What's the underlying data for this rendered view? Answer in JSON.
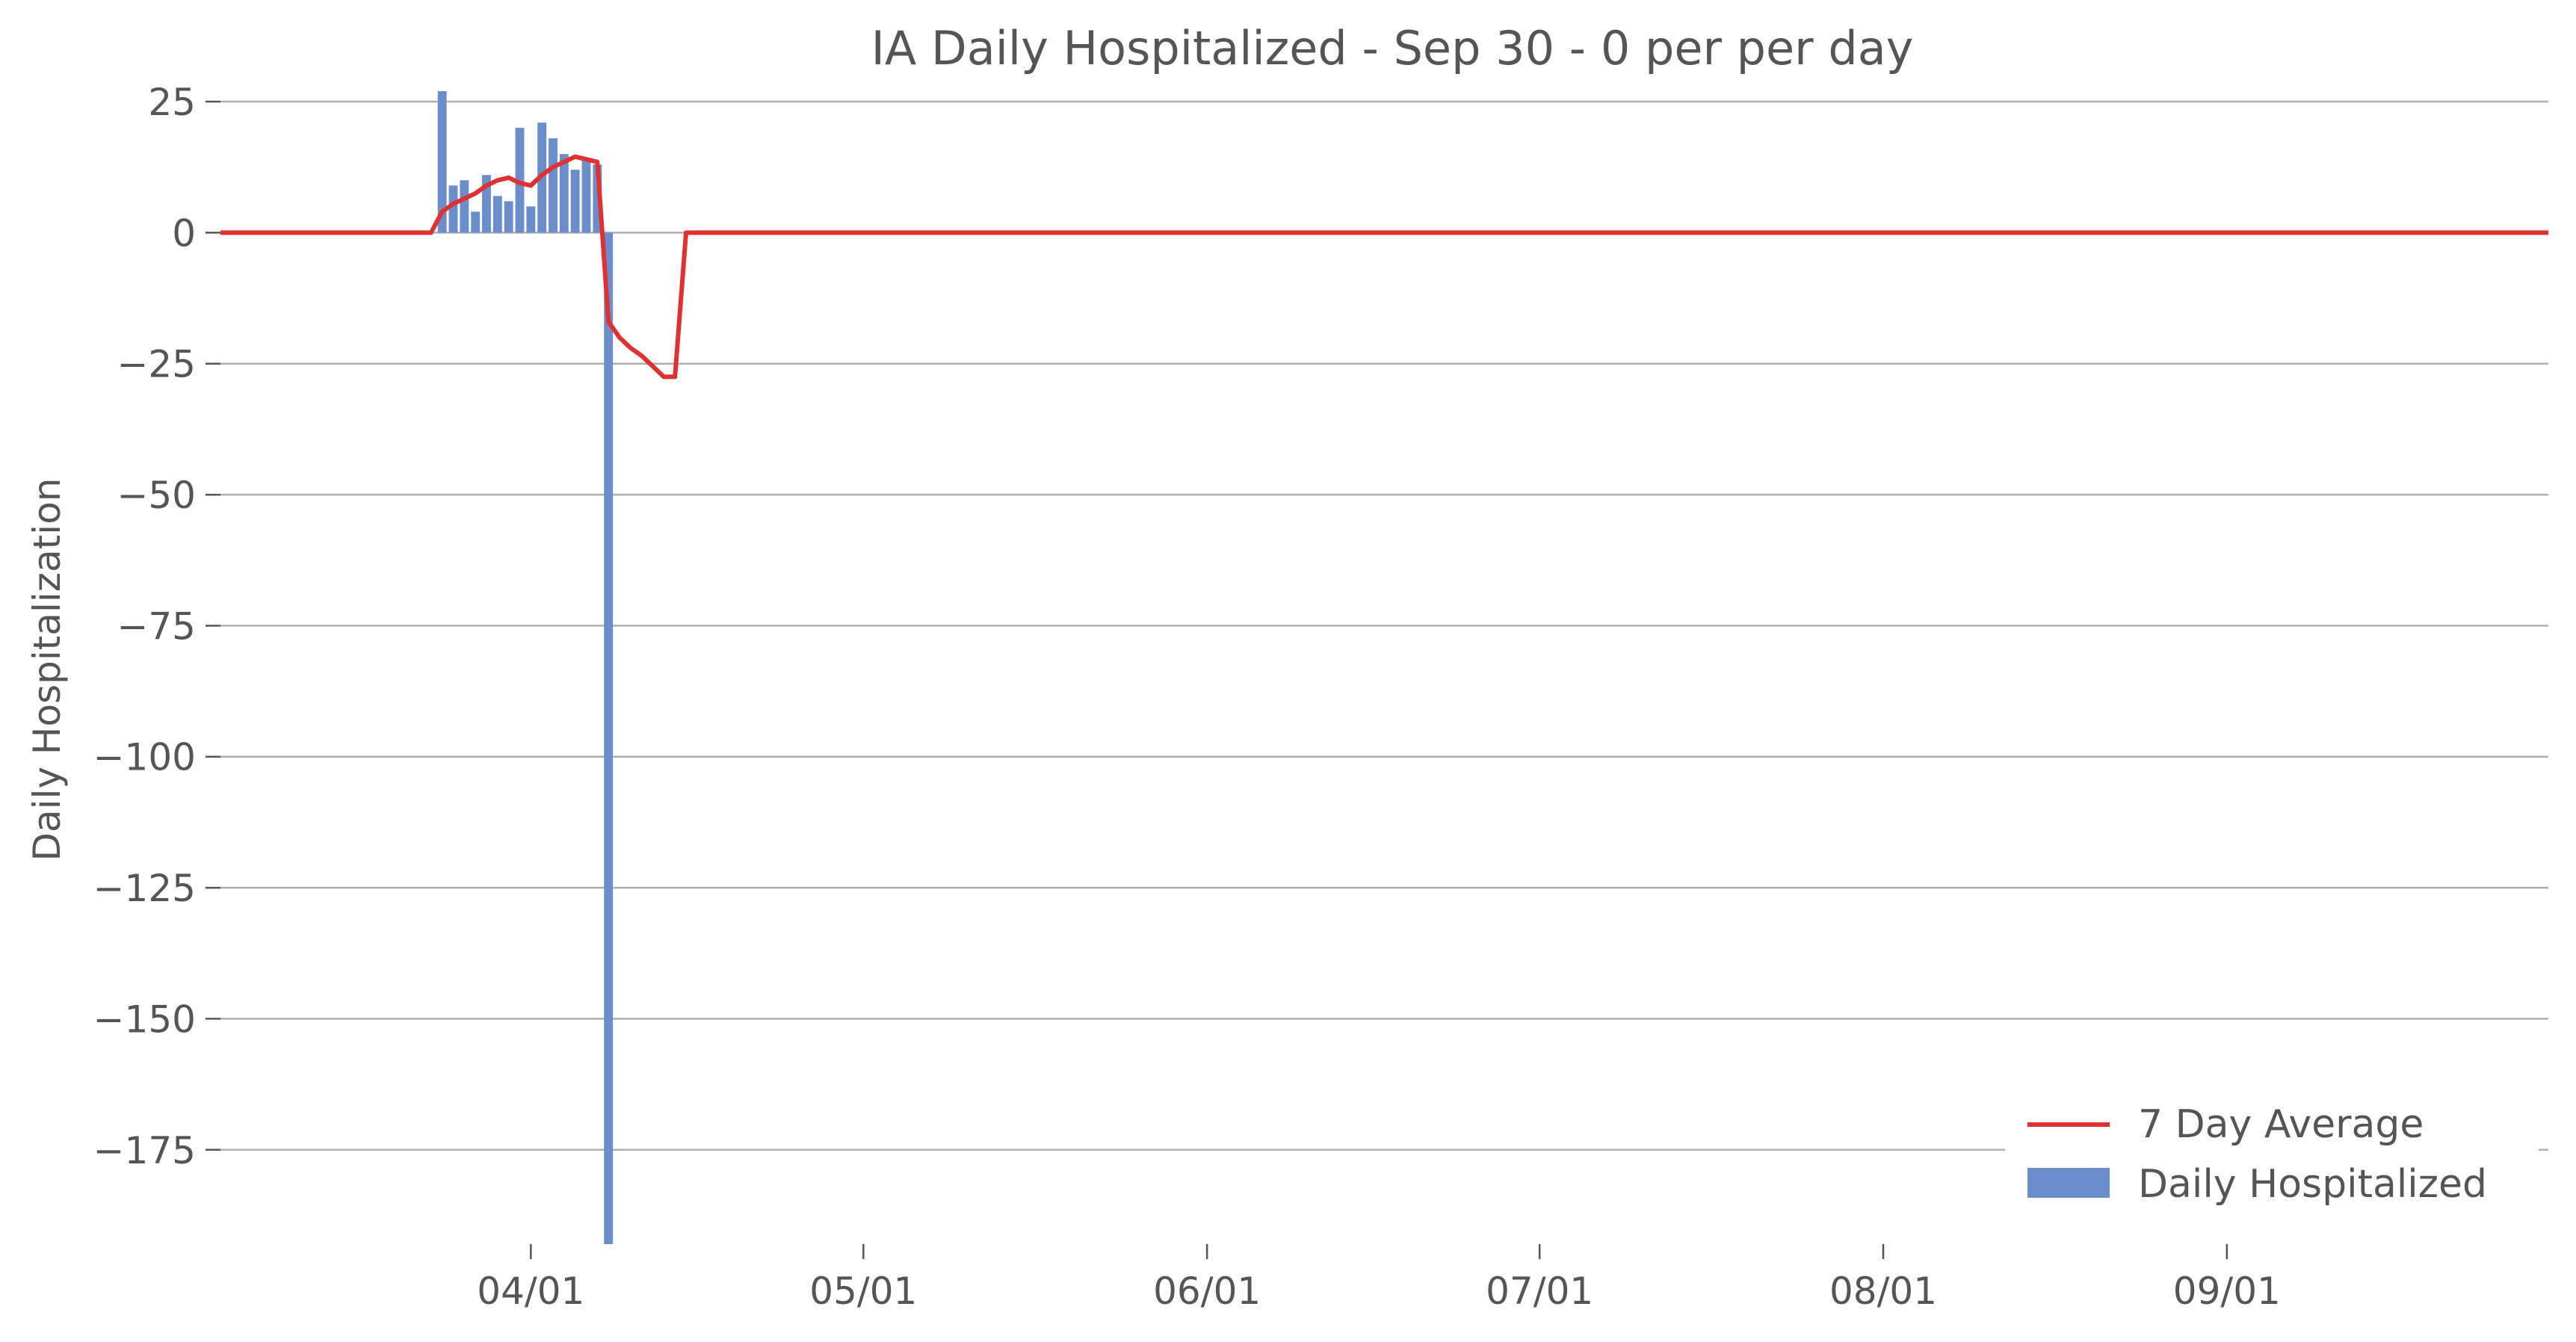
{
  "chart_data": {
    "type": "bar",
    "title": "IA Daily Hospitalized - Sep 30 - 0 per per day",
    "xlabel": "",
    "ylabel": "Daily Hospitalization",
    "ylim": [
      -193,
      29
    ],
    "yticks": [
      25,
      0,
      -25,
      -50,
      -75,
      -100,
      -125,
      -150,
      -175
    ],
    "yticklabels": [
      "25",
      "0",
      "−25",
      "−50",
      "−75",
      "−100",
      "−125",
      "−150",
      "−175"
    ],
    "xlim": [
      "2020-03-04",
      "2020-09-30"
    ],
    "xticks": [
      "2020-04-01",
      "2020-05-01",
      "2020-06-01",
      "2020-07-01",
      "2020-08-01",
      "2020-09-01"
    ],
    "xticklabels": [
      "04/01",
      "05/01",
      "06/01",
      "07/01",
      "08/01",
      "09/01"
    ],
    "grid": "horizontal",
    "legend_position": "lower-right",
    "colors": {
      "bars": "#6b8dcc",
      "average": "#e03030",
      "text": "#555555",
      "grid": "#b0b0b0"
    },
    "series": [
      {
        "name": "Daily Hospitalized",
        "type": "bar",
        "x": [
          "2020-03-24",
          "2020-03-25",
          "2020-03-26",
          "2020-03-27",
          "2020-03-28",
          "2020-03-29",
          "2020-03-30",
          "2020-03-31",
          "2020-04-01",
          "2020-04-02",
          "2020-04-03",
          "2020-04-04",
          "2020-04-05",
          "2020-04-06",
          "2020-04-07",
          "2020-04-08"
        ],
        "values": [
          27,
          9,
          10,
          4,
          11,
          7,
          6,
          20,
          5,
          21,
          18,
          15,
          12,
          14,
          13,
          -193
        ]
      },
      {
        "name": "7 Day Average",
        "type": "line",
        "x": [
          "2020-03-04",
          "2020-03-23",
          "2020-03-24",
          "2020-03-25",
          "2020-03-26",
          "2020-03-27",
          "2020-03-28",
          "2020-03-29",
          "2020-03-30",
          "2020-03-31",
          "2020-04-01",
          "2020-04-02",
          "2020-04-03",
          "2020-04-04",
          "2020-04-05",
          "2020-04-06",
          "2020-04-07",
          "2020-04-08",
          "2020-04-09",
          "2020-04-10",
          "2020-04-11",
          "2020-04-12",
          "2020-04-13",
          "2020-04-14",
          "2020-04-15",
          "2020-09-30"
        ],
        "values": [
          0,
          0,
          4,
          5.5,
          6.5,
          7.5,
          9,
          10,
          10.5,
          9.5,
          9,
          11,
          12.5,
          13.5,
          14.5,
          14,
          13.5,
          -17,
          -20,
          -22,
          -23.5,
          -25.5,
          -27.5,
          -27.5,
          0,
          0
        ]
      }
    ]
  }
}
